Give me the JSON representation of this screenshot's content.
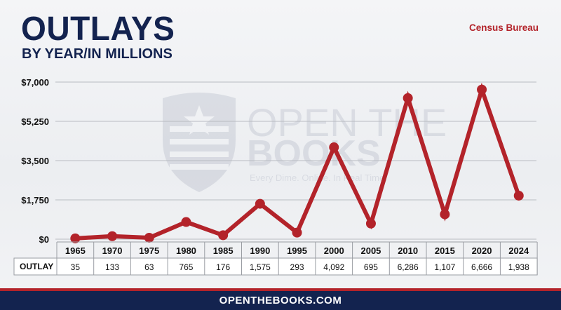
{
  "header": {
    "title": "OUTLAYS",
    "subtitle": "BY YEAR/IN MILLIONS",
    "source": "Census Bureau"
  },
  "watermark": {
    "line1": "OPEN THE",
    "line2": "BOOKS",
    "tagline": "Every Dime. Online. In Real Time."
  },
  "footer": {
    "text": "OPENTHEBOOKS.COM"
  },
  "table": {
    "row_label": "OUTLAY",
    "cells": [
      "35",
      "133",
      "63",
      "765",
      "176",
      "1,575",
      "293",
      "4,092",
      "695",
      "6,286",
      "1,107",
      "6,666",
      "1,938"
    ]
  },
  "colors": {
    "line": "#b3232a",
    "title": "#13234f",
    "source": "#b3232a",
    "footer_bg": "#13234f"
  },
  "chart_data": {
    "type": "line",
    "title": "OUTLAYS",
    "subtitle": "BY YEAR/IN MILLIONS",
    "categories": [
      "1965",
      "1970",
      "1975",
      "1980",
      "1985",
      "1990",
      "1995",
      "2000",
      "2005",
      "2010",
      "2015",
      "2020",
      "2024"
    ],
    "values": [
      35,
      133,
      63,
      765,
      176,
      1575,
      293,
      4092,
      695,
      6286,
      1107,
      6666,
      1938
    ],
    "ylim": [
      0,
      7000
    ],
    "yticks": [
      0,
      1750,
      3500,
      5250,
      7000
    ],
    "ytick_labels": [
      "$0",
      "$1,750",
      "$3,500",
      "$5,250",
      "$7,000"
    ],
    "grid": true,
    "legend": "none"
  }
}
